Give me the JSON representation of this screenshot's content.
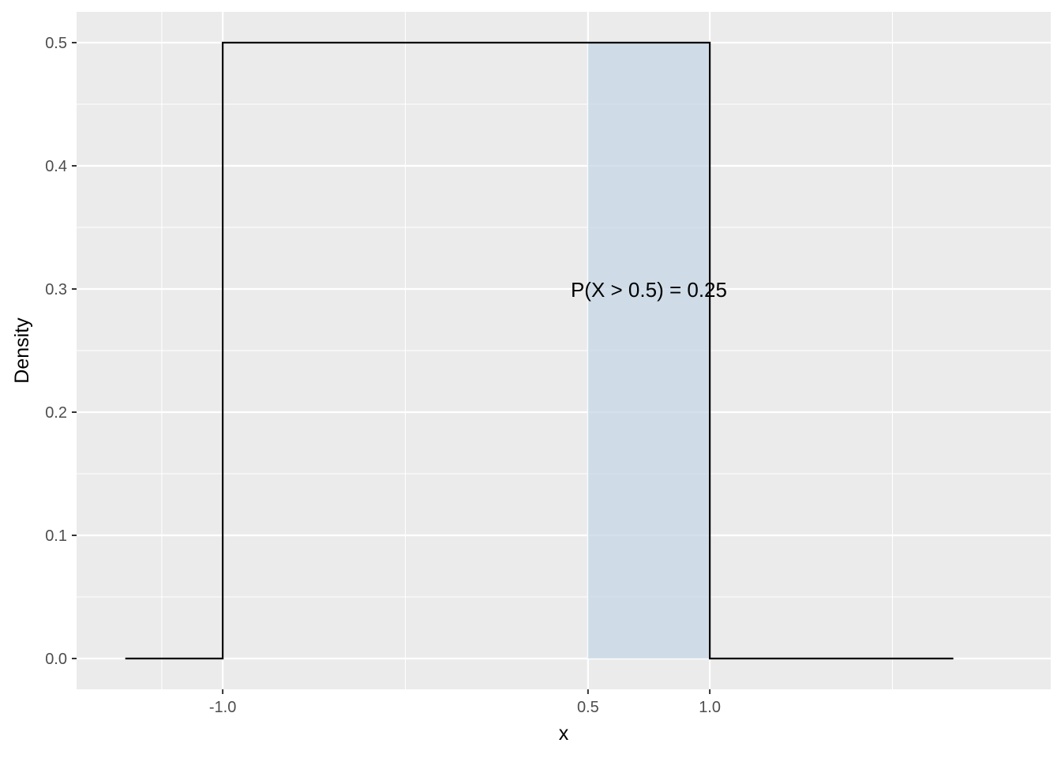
{
  "chart_data": {
    "type": "line",
    "xlabel": "x",
    "ylabel": "Density",
    "xlim": [
      -1.6,
      2.4
    ],
    "ylim": [
      -0.025,
      0.525
    ],
    "x_ticks": [
      -1.0,
      0.5,
      1.0
    ],
    "x_tick_labels": [
      "-1.0",
      "0.5",
      "1.0"
    ],
    "x_minor_gridlines": [
      -1.25,
      -0.25,
      1.75
    ],
    "y_ticks": [
      0.0,
      0.1,
      0.2,
      0.3,
      0.4,
      0.5
    ],
    "y_tick_labels": [
      "0.0",
      "0.1",
      "0.2",
      "0.3",
      "0.4",
      "0.5"
    ],
    "grid": true,
    "series": [
      {
        "x": [
          -1.4,
          -1.0,
          -1.0,
          1.0,
          1.0,
          2.0
        ],
        "y": [
          0.0,
          0.0,
          0.5,
          0.5,
          0.0,
          0.0
        ]
      }
    ],
    "shaded_region": {
      "x_from": 0.5,
      "x_to": 1.0,
      "y_from": 0.0,
      "y_to": 0.5
    },
    "annotation": {
      "text": "P(X > 0.5) = 0.25",
      "x": 0.75,
      "y": 0.3
    },
    "colors": {
      "panel": "#ebebeb",
      "grid": "#ffffff",
      "line": "#000000",
      "shade": "#c6d7e5"
    }
  }
}
